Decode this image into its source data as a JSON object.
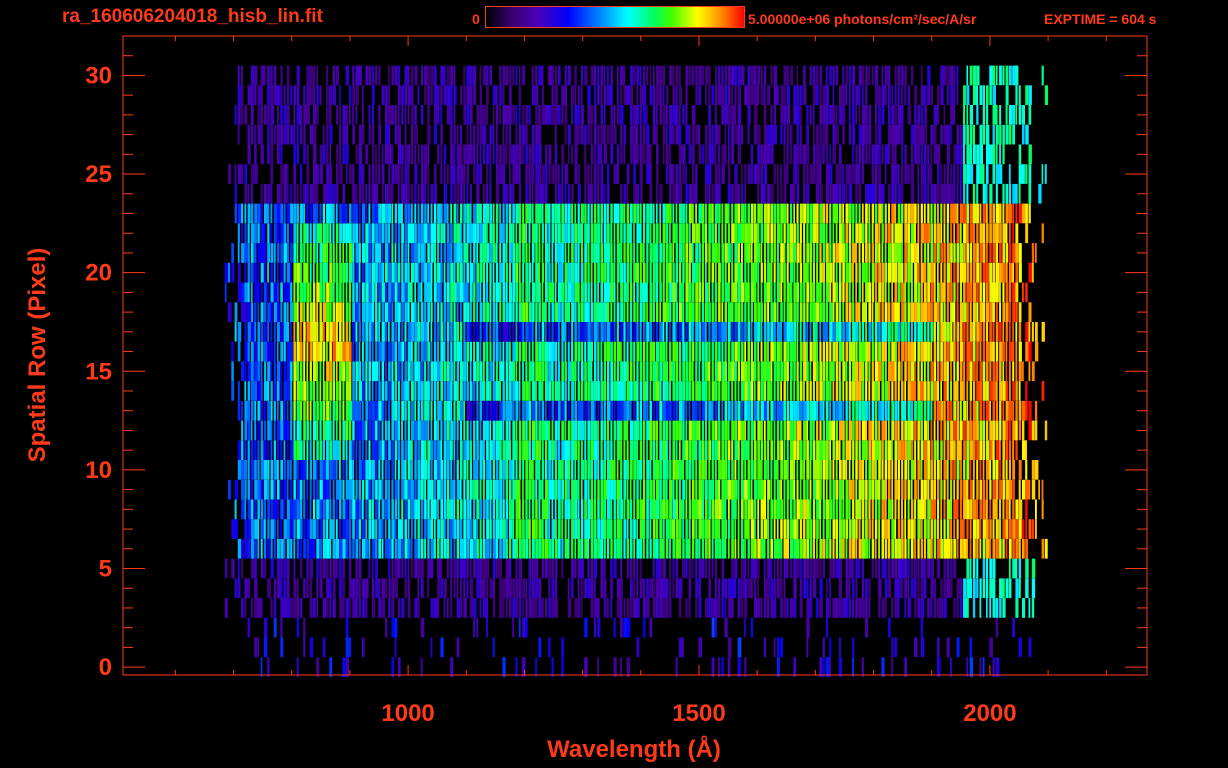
{
  "header": {
    "title": "ra_160606204018_hisb_lin.fit",
    "colorbar_min": "0",
    "colorbar_max": "5.00000e+06 photons/cm²/sec/A/sr",
    "exptime": "EXPTIME = 604 s"
  },
  "colors": {
    "text": "#ff3a1a",
    "axis": "#ff3a1a",
    "background": "#000000"
  },
  "chart_data": {
    "type": "heatmap",
    "title": "ra_160606204018_hisb_lin.fit",
    "xlabel": "Wavelength (Å)",
    "ylabel": "Spatial Row (Pixel)",
    "xlim": [
      510,
      2270
    ],
    "ylim": [
      -0.4,
      32
    ],
    "x_ticks": [
      1000,
      1500,
      2000
    ],
    "y_ticks": [
      0,
      5,
      10,
      15,
      20,
      25,
      30
    ],
    "colorscale": [
      "#000000",
      "#3a0070",
      "#4a00b8",
      "#0000ff",
      "#0090ff",
      "#00ffff",
      "#00ff60",
      "#40ff00",
      "#ffff00",
      "#ff8000",
      "#ff0000"
    ],
    "value_range": [
      0,
      5000000
    ],
    "value_units": "photons/cm²/sec/A/sr",
    "grid": false,
    "features": [
      {
        "x": [
          650,
          2070
        ],
        "rows": [
          0,
          30
        ],
        "level": 0.2
      },
      {
        "x": [
          700,
          2070
        ],
        "rows": [
          6,
          23
        ],
        "level": 0.45
      },
      {
        "x": [
          1180,
          1240
        ],
        "rows": [
          6,
          23
        ],
        "level": 0.62
      },
      {
        "x": [
          800,
          900
        ],
        "rows": [
          11,
          22
        ],
        "level": 0.85
      },
      {
        "x": [
          1800,
          2070
        ],
        "rows": [
          7,
          22
        ],
        "level": 0.9
      }
    ]
  }
}
